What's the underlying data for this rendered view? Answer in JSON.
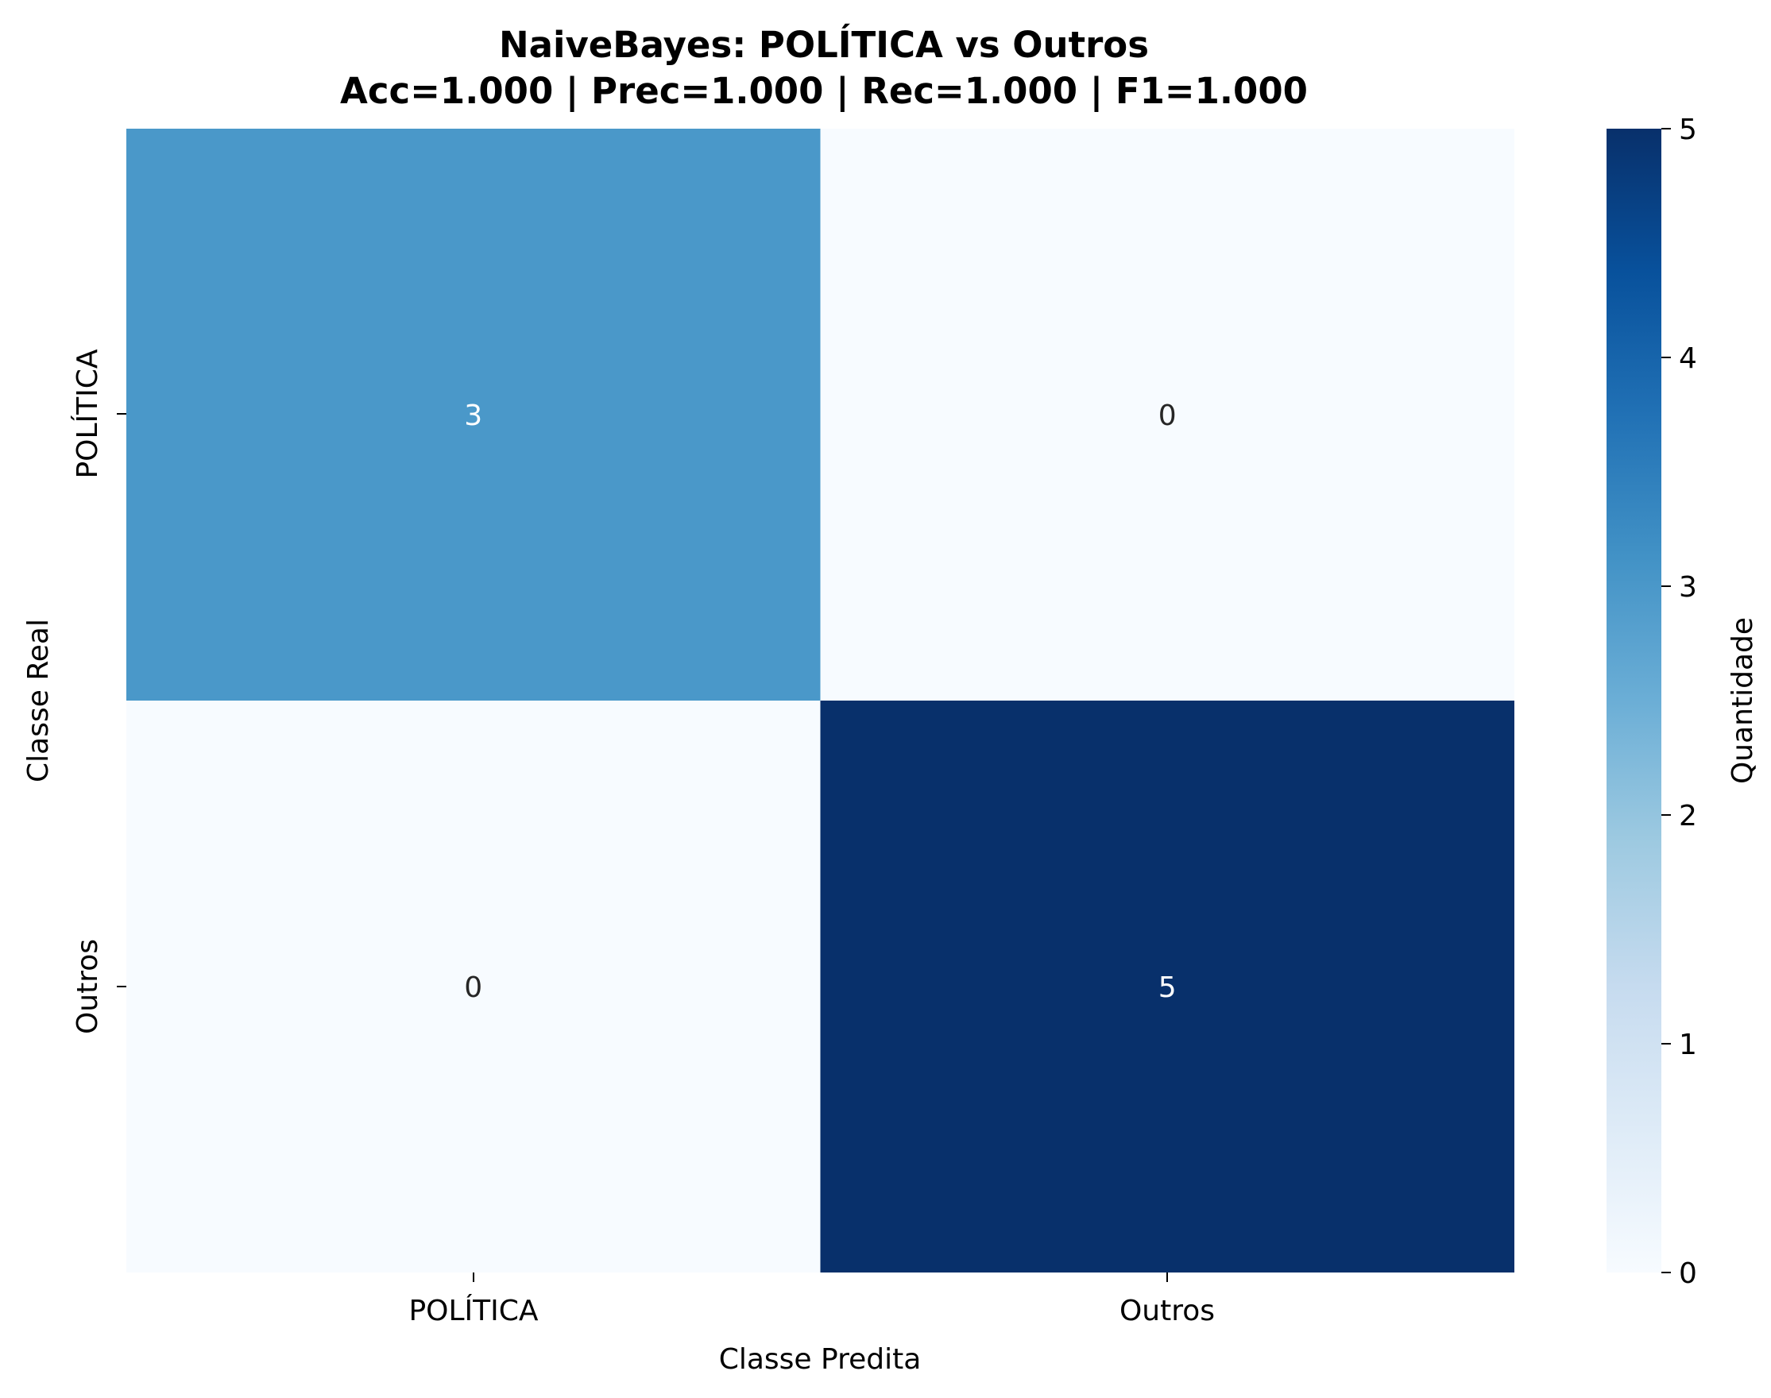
{
  "chart_data": {
    "type": "heatmap",
    "title_lines": [
      "NaiveBayes: POLÍTICA vs Outros",
      "Acc=1.000 | Prec=1.000 | Rec=1.000 | F1=1.000"
    ],
    "xlabel": "Classe Predita",
    "ylabel": "Classe Real",
    "x_categories": [
      "POLÍTICA",
      "Outros"
    ],
    "y_categories": [
      "POLÍTICA",
      "Outros"
    ],
    "matrix": [
      [
        3,
        0
      ],
      [
        0,
        5
      ]
    ],
    "colorbar": {
      "label": "Quantidade",
      "range": [
        0,
        5
      ],
      "ticks": [
        "0",
        "1",
        "2",
        "3",
        "4",
        "5"
      ],
      "colormap": "Blues"
    },
    "colors": {
      "text_dark": "#262626",
      "text_light": "#ffffff"
    }
  }
}
